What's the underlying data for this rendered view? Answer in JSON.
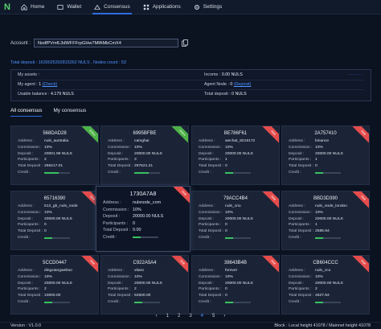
{
  "nav": {
    "logo": "N",
    "items": [
      {
        "label": "Home",
        "icon": "home-icon"
      },
      {
        "label": "Wallet",
        "icon": "wallet-icon"
      },
      {
        "label": "Consensus",
        "icon": "consensus-icon"
      },
      {
        "label": "Applications",
        "icon": "applications-icon"
      },
      {
        "label": "Settings",
        "icon": "settings-icon"
      }
    ],
    "active": "Consensus",
    "accent_color": "#2f6ce0"
  },
  "account": {
    "label": "Account :",
    "value": "NsdfPVmfL3dWFFFrpGHw7MfAMbCmX4"
  },
  "deposit_summary": "Total deposit : 1639025302815262 NULS , Nodes count : 53",
  "summary": {
    "my_assets_label": "My assets :",
    "income_label": "Income :",
    "income_value": "0.00 NULS",
    "my_agent_label": "My agent :",
    "my_agent_value": "1",
    "my_agent_link": "(Check)",
    "agent_node_label": "Agent Node :",
    "agent_node_value": "0",
    "agent_node_link": "(Deposit)",
    "usable_balance_label": "Usable balance :",
    "usable_balance_value": "4.179 NULS",
    "total_deposit_label": "Total deposit :",
    "total_deposit_value": "0 NULS",
    "dashes": "- - - - - -"
  },
  "tabs": [
    "All consensus",
    "My consensus"
  ],
  "card_labels": {
    "address": "Address :",
    "commission": "Commission :",
    "deposit": "Deposit :",
    "participants": "Participants :",
    "total_deposit": "Total Deposit :",
    "credit": "Credit :"
  },
  "cards": [
    {
      "title": "568DAD28",
      "address": "nuls_australia",
      "commission": "10%",
      "deposit": "20001.99 NULS",
      "participants": "2",
      "total_deposit": "266217.01",
      "credit": 0.55,
      "ribbon": "green",
      "ribbon_text": "Active"
    },
    {
      "title": "6995BFBE",
      "address": "camghai",
      "commission": "10%",
      "deposit": "20000.00 NULS",
      "participants": "3",
      "total_deposit": "297521.21",
      "credit": 0.55,
      "ribbon": "green",
      "ribbon_text": "Active"
    },
    {
      "title": "BE786F61",
      "address": "wechat_8219172",
      "commission": "10%",
      "deposit": "20000.00 NULS",
      "participants": "1",
      "total_deposit": "0",
      "credit": 0.3,
      "ribbon": "red",
      "ribbon_text": "Wait"
    },
    {
      "title": "2A757410",
      "address": "binance",
      "commission": "10%",
      "deposit": "20000.00 NULS",
      "participants": "1",
      "total_deposit": "0",
      "credit": 0.3,
      "ribbon": "red",
      "ribbon_text": "Wait"
    },
    {
      "title": "65716390",
      "address": "512_gb_nuls_node",
      "commission": "10%",
      "deposit": "20000.00 NULS",
      "participants": "0",
      "total_deposit": "0",
      "credit": 0.3,
      "ribbon": "red",
      "ribbon_text": "Wait"
    },
    {
      "title": "1730A7A8",
      "address": "nulsnode_com",
      "commission": "10%",
      "deposit": "20000.00 NULS",
      "participants": "0",
      "total_deposit": "0.00",
      "credit": 0.3,
      "ribbon": "red",
      "ribbon_text": "Wait",
      "highlight": true
    },
    {
      "title": "79ACC4B4",
      "address": "nuls_cnu",
      "commission": "10%",
      "deposit": "20000.00 NULS",
      "participants": "0",
      "total_deposit": "0",
      "credit": 0.3,
      "ribbon": "red",
      "ribbon_text": "Wait"
    },
    {
      "title": "BBD3D390",
      "address": "nuls_node_london",
      "commission": "10%",
      "deposit": "20000.00 NULS",
      "participants": "1",
      "total_deposit": "2585.94",
      "credit": 0.3,
      "ribbon": "red",
      "ribbon_text": "Wait"
    },
    {
      "title": "5CCD0447",
      "address": "dingxiangweilao",
      "commission": "10%",
      "deposit": "20000.00 NULS",
      "participants": "2",
      "total_deposit": "10000.00",
      "credit": 0.3,
      "ribbon": "red",
      "ribbon_text": "Wait"
    },
    {
      "title": "C922A5A4",
      "address": "vitaro",
      "commission": "10%",
      "deposit": "20000.00 NULS",
      "participants": "2",
      "total_deposit": "52500.00",
      "credit": 0.3,
      "ribbon": "red",
      "ribbon_text": "Wait"
    },
    {
      "title": "38643B4B",
      "address": "forever",
      "commission": "10%",
      "deposit": "20000.00 NULS",
      "participants": "0",
      "total_deposit": "0",
      "credit": 0.3,
      "ribbon": "red",
      "ribbon_text": "Wait"
    },
    {
      "title": "CB604CCC",
      "address": "nuls_ccu",
      "commission": "10%",
      "deposit": "20000.00 NULS",
      "participants": "2",
      "total_deposit": "4627.84",
      "credit": 0.3,
      "ribbon": "red",
      "ribbon_text": "Wait"
    }
  ],
  "pagination": {
    "prev": "‹",
    "pages": [
      "1",
      "2",
      "3",
      "4",
      "5"
    ],
    "current": "4",
    "next": "›"
  },
  "footer": {
    "version": "Version : V1.0.0",
    "block": "Block : Local height 41078 / Mainnet height 41078"
  }
}
